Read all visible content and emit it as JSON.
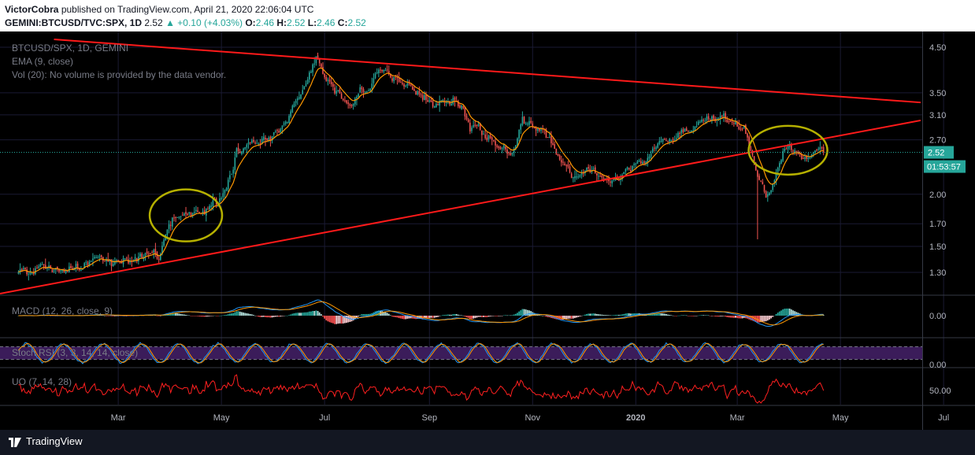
{
  "header": {
    "author": "VictorCobra",
    "published": "published on TradingView.com, April 21, 2020 22:06:04 UTC",
    "symbol": "GEMINI:BTCUSD/TVC:SPX, 1D",
    "last": "2.52",
    "change": "▲ +0.10 (+4.03%)",
    "o_label": "O:",
    "o_val": "2.46",
    "h_label": "H:",
    "h_val": "2.52",
    "l_label": "L:",
    "l_val": "2.46",
    "c_label": "C:",
    "c_val": "2.52"
  },
  "legend": {
    "main": "BTCUSD/SPX, 1D, GEMINI",
    "ema": "EMA (9, close)",
    "vol": "Vol (20): No volume is provided by the data vendor.",
    "macd": "MACD (12, 26, close, 9)",
    "stoch": "Stoch RSI (3, 3, 14, 14, close)",
    "uo": "UO (7, 14, 28)"
  },
  "price_badge": "2.52",
  "countdown_badge": "01:53:57",
  "footer": {
    "brand": "TradingView"
  },
  "colors": {
    "up": "#26a69a",
    "down": "#ef5350",
    "ema": "#ff9800",
    "trendline": "#ff1a1a",
    "circle": "#b5b000",
    "macd": "#2196f3",
    "signal": "#ff9800",
    "stoch_k": "#2196f3",
    "stoch_d": "#ff9800",
    "stoch_band": "#3b1c5a",
    "uo": "#ff2020",
    "grid": "#1a1a33"
  },
  "chart_data": [
    {
      "type": "candlestick",
      "title": "BTCUSD/SPX, 1D, GEMINI",
      "y_scale": "log",
      "ylim": [
        1.1,
        4.8
      ],
      "x_ticks": [
        "Mar",
        "May",
        "Jul",
        "Sep",
        "Nov",
        "2020",
        "Mar",
        "May",
        "Jul"
      ],
      "y_ticks": [
        "4.50",
        "3.50",
        "3.10",
        "2.70",
        "2.00",
        "1.70",
        "1.50",
        "1.30"
      ],
      "y_tick_values": [
        4.5,
        3.5,
        3.1,
        2.7,
        2.0,
        1.7,
        1.5,
        1.3
      ],
      "close_path": {
        "dates": [
          "2019-02-01",
          "2019-02-20",
          "2019-03-05",
          "2019-03-25",
          "2019-04-02",
          "2019-04-10",
          "2019-04-22",
          "2019-05-01",
          "2019-05-10",
          "2019-05-15",
          "2019-05-28",
          "2019-06-05",
          "2019-06-15",
          "2019-06-26",
          "2019-07-02",
          "2019-07-10",
          "2019-07-17",
          "2019-07-25",
          "2019-08-05",
          "2019-08-12",
          "2019-08-25",
          "2019-09-05",
          "2019-09-20",
          "2019-09-25",
          "2019-10-05",
          "2019-10-20",
          "2019-10-26",
          "2019-11-05",
          "2019-11-15",
          "2019-11-25",
          "2019-12-05",
          "2019-12-18",
          "2020-01-01",
          "2020-01-15",
          "2020-01-30",
          "2020-02-12",
          "2020-02-25",
          "2020-03-05",
          "2020-03-12",
          "2020-03-18",
          "2020-03-25",
          "2020-04-01",
          "2020-04-10",
          "2020-04-21"
        ],
        "values": [
          1.33,
          1.38,
          1.4,
          1.42,
          1.75,
          1.78,
          1.8,
          1.95,
          2.5,
          2.6,
          2.7,
          2.9,
          3.3,
          4.2,
          3.7,
          3.5,
          3.2,
          3.6,
          4.0,
          3.7,
          3.5,
          3.4,
          3.3,
          2.8,
          2.75,
          2.5,
          3.0,
          2.9,
          2.45,
          2.2,
          2.25,
          2.15,
          2.3,
          2.65,
          2.8,
          3.0,
          2.95,
          2.9,
          2.3,
          1.9,
          2.3,
          2.75,
          2.45,
          2.52
        ]
      },
      "ema_period": 9,
      "last_price": 2.52
    },
    {
      "type": "line",
      "title": "MACD (12, 26, close, 9)",
      "y_ticks": [
        "0.00"
      ],
      "series": [
        {
          "name": "MACD",
          "color": "#2196f3"
        },
        {
          "name": "Signal",
          "color": "#ff9800"
        }
      ]
    },
    {
      "type": "line",
      "title": "Stoch RSI (3, 3, 14, 14, close)",
      "y_ticks": [
        "0.00"
      ],
      "band": [
        20,
        80
      ]
    },
    {
      "type": "line",
      "title": "UO (7, 14, 28)",
      "y_ticks": [
        "50.00"
      ]
    }
  ]
}
